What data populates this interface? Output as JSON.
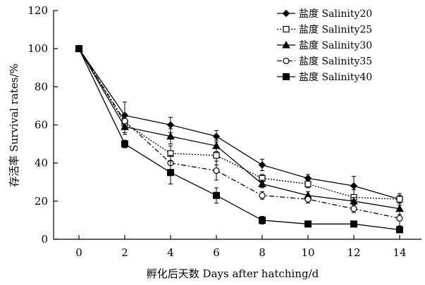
{
  "chart_data": {
    "type": "line",
    "xlabel": "孵化后天数 Days after hatching/d",
    "ylabel": "存活率 Survival rates/%",
    "x": [
      0,
      2,
      4,
      6,
      8,
      10,
      12,
      14
    ],
    "x_ticks": [
      0,
      2,
      4,
      6,
      8,
      10,
      12,
      14
    ],
    "y_ticks": [
      0,
      20,
      40,
      60,
      80,
      100,
      120
    ],
    "xlim": [
      -1,
      15
    ],
    "ylim": [
      0,
      120
    ],
    "grid": false,
    "legend_position": "top-right",
    "series": [
      {
        "name": "盐度 Salinity20",
        "marker": "diamond-filled",
        "line": "solid",
        "values": [
          100,
          65,
          60,
          54,
          39,
          32,
          28,
          21
        ],
        "errors": [
          0,
          7,
          4,
          3,
          3,
          2,
          5,
          2
        ]
      },
      {
        "name": "盐度 Salinity25",
        "marker": "square-open",
        "line": "dotted",
        "values": [
          100,
          61,
          45,
          44,
          32,
          29,
          22,
          21
        ],
        "errors": [
          0,
          5,
          4,
          5,
          2,
          2,
          4,
          3
        ]
      },
      {
        "name": "盐度 Salinity30",
        "marker": "triangle-filled",
        "line": "solid",
        "values": [
          100,
          59,
          54,
          49,
          29,
          23,
          20,
          16
        ],
        "errors": [
          0,
          4,
          4,
          3,
          2,
          2,
          2,
          3
        ]
      },
      {
        "name": "盐度 Salinity35",
        "marker": "circle-open",
        "line": "dashdot",
        "values": [
          100,
          62,
          40,
          36,
          23,
          21,
          16,
          11
        ],
        "errors": [
          0,
          4,
          4,
          5,
          2,
          2,
          2,
          4
        ]
      },
      {
        "name": "盐度 Salinity40",
        "marker": "square-filled",
        "line": "solid",
        "values": [
          100,
          50,
          35,
          23,
          10,
          8,
          8,
          5
        ],
        "errors": [
          0,
          2,
          6,
          4,
          2,
          1,
          1,
          1
        ]
      }
    ]
  }
}
